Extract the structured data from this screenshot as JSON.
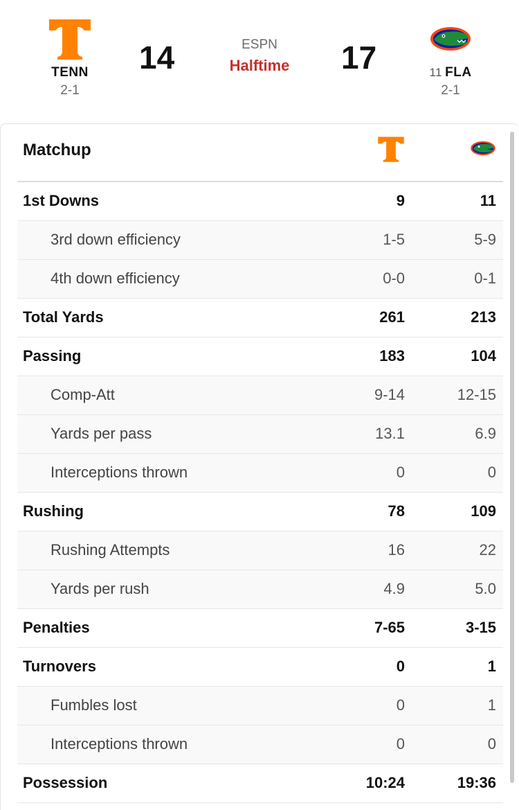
{
  "colors": {
    "tenn_orange": "#FF8200",
    "gators_blue": "#0021A5",
    "gators_orange": "#FA4616",
    "status_red": "#C7302B"
  },
  "scoreboard": {
    "away": {
      "abbr": "TENN",
      "record": "2-1",
      "score": "14",
      "logo_icon": "tennessee-t-logo"
    },
    "home": {
      "rank": "11",
      "abbr": "FLA",
      "record": "2-1",
      "score": "17",
      "logo_icon": "florida-gator-logo"
    },
    "network": "ESPN",
    "status": "Halftime"
  },
  "matchup": {
    "title": "Matchup",
    "rows": [
      {
        "label": "1st Downs",
        "tenn": "9",
        "fla": "11",
        "type": "main"
      },
      {
        "label": "3rd down efficiency",
        "tenn": "1-5",
        "fla": "5-9",
        "type": "sub"
      },
      {
        "label": "4th down efficiency",
        "tenn": "0-0",
        "fla": "0-1",
        "type": "sub"
      },
      {
        "label": "Total Yards",
        "tenn": "261",
        "fla": "213",
        "type": "main"
      },
      {
        "label": "Passing",
        "tenn": "183",
        "fla": "104",
        "type": "main"
      },
      {
        "label": "Comp-Att",
        "tenn": "9-14",
        "fla": "12-15",
        "type": "sub"
      },
      {
        "label": "Yards per pass",
        "tenn": "13.1",
        "fla": "6.9",
        "type": "sub"
      },
      {
        "label": "Interceptions thrown",
        "tenn": "0",
        "fla": "0",
        "type": "sub"
      },
      {
        "label": "Rushing",
        "tenn": "78",
        "fla": "109",
        "type": "main"
      },
      {
        "label": "Rushing Attempts",
        "tenn": "16",
        "fla": "22",
        "type": "sub"
      },
      {
        "label": "Yards per rush",
        "tenn": "4.9",
        "fla": "5.0",
        "type": "sub"
      },
      {
        "label": "Penalties",
        "tenn": "7-65",
        "fla": "3-15",
        "type": "main"
      },
      {
        "label": "Turnovers",
        "tenn": "0",
        "fla": "1",
        "type": "main"
      },
      {
        "label": "Fumbles lost",
        "tenn": "0",
        "fla": "1",
        "type": "sub"
      },
      {
        "label": "Interceptions thrown",
        "tenn": "0",
        "fla": "0",
        "type": "sub"
      },
      {
        "label": "Possession",
        "tenn": "10:24",
        "fla": "19:36",
        "type": "main"
      }
    ]
  }
}
